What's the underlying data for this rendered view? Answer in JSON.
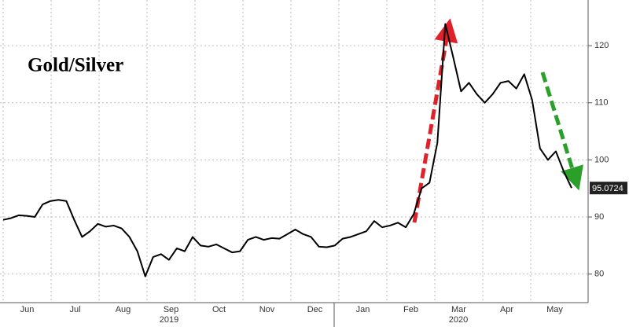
{
  "chart_data": {
    "type": "line",
    "title": "Gold/Silver",
    "categories": [
      "Jun",
      "Jul",
      "Aug",
      "Sep",
      "Oct",
      "Nov",
      "Dec",
      "Jan",
      "Feb",
      "Mar",
      "Apr",
      "May"
    ],
    "years": [
      "2019",
      "2020"
    ],
    "values": [
      [
        89.5,
        89.8,
        90.3,
        90.2,
        90.0,
        92.2
      ],
      [
        92.8,
        93.0,
        92.8,
        89.5,
        86.5,
        87.5
      ],
      [
        88.8,
        88.3,
        88.5,
        88.0,
        86.5,
        84.0
      ],
      [
        79.6,
        83.0,
        83.5,
        82.5,
        84.5,
        84.0
      ],
      [
        86.5,
        85.0,
        84.8,
        85.2,
        84.5,
        83.8
      ],
      [
        84.0,
        86.0,
        86.5,
        86.0,
        86.3,
        86.2
      ],
      [
        87.0,
        87.8,
        87.0,
        86.5,
        84.8,
        84.7
      ],
      [
        85.0,
        86.2,
        86.5,
        87.0,
        87.5,
        89.3
      ],
      [
        88.2,
        88.5,
        89.0,
        88.2,
        90.5,
        95.0
      ],
      [
        96.0,
        103.0,
        123.8,
        118.0,
        112.0,
        113.5
      ],
      [
        111.5,
        110.0,
        111.5,
        113.5,
        113.8,
        112.5
      ],
      [
        115.0,
        110.5,
        102.0,
        100.0,
        101.5,
        98.0,
        95.0724
      ]
    ],
    "color": "#000000",
    "ylim": [
      75,
      128
    ],
    "yticks": [
      80,
      90,
      100,
      110,
      120
    ],
    "grid": true
  }
}
